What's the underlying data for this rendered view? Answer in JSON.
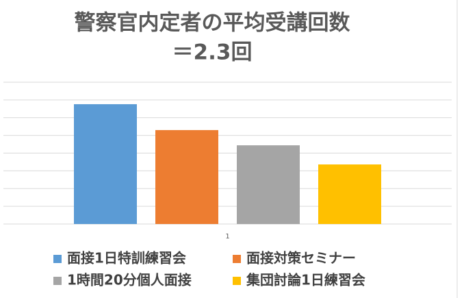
{
  "chart_data": {
    "type": "bar",
    "title": [
      "警察官内定者の平均受講回数",
      "＝2.3回"
    ],
    "categories": [
      "1"
    ],
    "series": [
      {
        "name": "面接1日特訓練習会",
        "color": "#5b9bd5",
        "values": [
          6.76
        ]
      },
      {
        "name": "面接対策セミナー",
        "color": "#ed7d31",
        "values": [
          5.3
        ]
      },
      {
        "name": "1時間20分個人面接",
        "color": "#a5a5a5",
        "values": [
          4.44
        ]
      },
      {
        "name": "集団討論1日練習会",
        "color": "#ffc000",
        "values": [
          3.36
        ]
      }
    ],
    "ylim": [
      0,
      8
    ],
    "yticks": [
      0,
      1,
      2,
      3,
      4,
      5,
      6,
      7,
      8
    ],
    "grid": true
  }
}
